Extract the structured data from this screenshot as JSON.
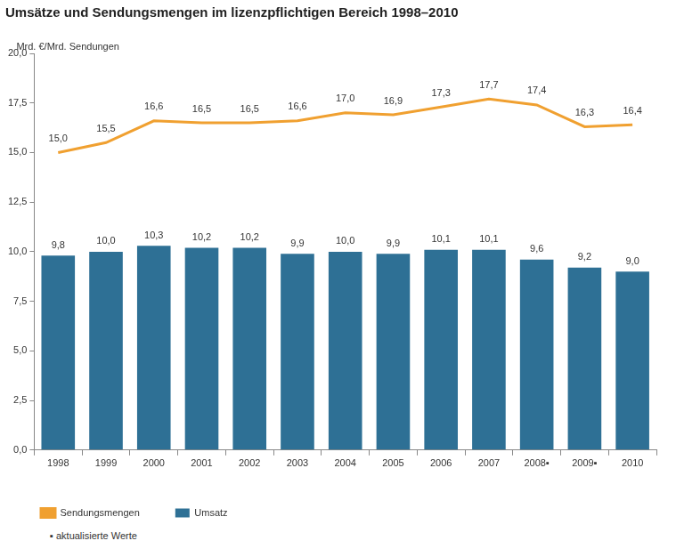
{
  "chart_data": {
    "type": "bar",
    "title": "Umsätze und Sendungsmengen im lizenzpflichtigen Bereich 1998–2010",
    "ylabel": "Mrd. €/Mrd. Sendungen",
    "categories": [
      "1998",
      "1999",
      "2000",
      "2001",
      "2002",
      "2003",
      "2004",
      "2005",
      "2006",
      "2007",
      "2008▪",
      "2009▪",
      "2010"
    ],
    "series": [
      {
        "name": "Umsatz",
        "type": "bar",
        "color": "#2e7095",
        "values": [
          9.8,
          10.0,
          10.3,
          10.2,
          10.2,
          9.9,
          10.0,
          9.9,
          10.1,
          10.1,
          9.6,
          9.2,
          9.0
        ],
        "value_labels": [
          "9,8",
          "10,0",
          "10,3",
          "10,2",
          "10,2",
          "9,9",
          "10,0",
          "9,9",
          "10,1",
          "10,1",
          "9,6",
          "9,2",
          "9,0"
        ]
      },
      {
        "name": "Sendungsmengen",
        "type": "line",
        "color": "#f0a030",
        "values": [
          15.0,
          15.5,
          16.6,
          16.5,
          16.5,
          16.6,
          17.0,
          16.9,
          17.3,
          17.7,
          17.4,
          16.3,
          16.4
        ],
        "value_labels": [
          "15,0",
          "15,5",
          "16,6",
          "16,5",
          "16,5",
          "16,6",
          "17,0",
          "16,9",
          "17,3",
          "17,7",
          "17,4",
          "16,3",
          "16,4"
        ]
      }
    ],
    "ylim": [
      0,
      20
    ],
    "yticks": [
      {
        "value": 0,
        "label": "0,0"
      },
      {
        "value": 2.5,
        "label": "2,5"
      },
      {
        "value": 5,
        "label": "5,0"
      },
      {
        "value": 7.5,
        "label": "7,5"
      },
      {
        "value": 10,
        "label": "10,0"
      },
      {
        "value": 12.5,
        "label": "12,5"
      },
      {
        "value": 15,
        "label": "15,0"
      },
      {
        "value": 17.5,
        "label": "17,5"
      },
      {
        "value": 20,
        "label": "20,0"
      }
    ],
    "grid": false,
    "legend": "bottom-left",
    "data_labels": true,
    "annotations": [
      "▪ aktualisierte Werte"
    ]
  }
}
